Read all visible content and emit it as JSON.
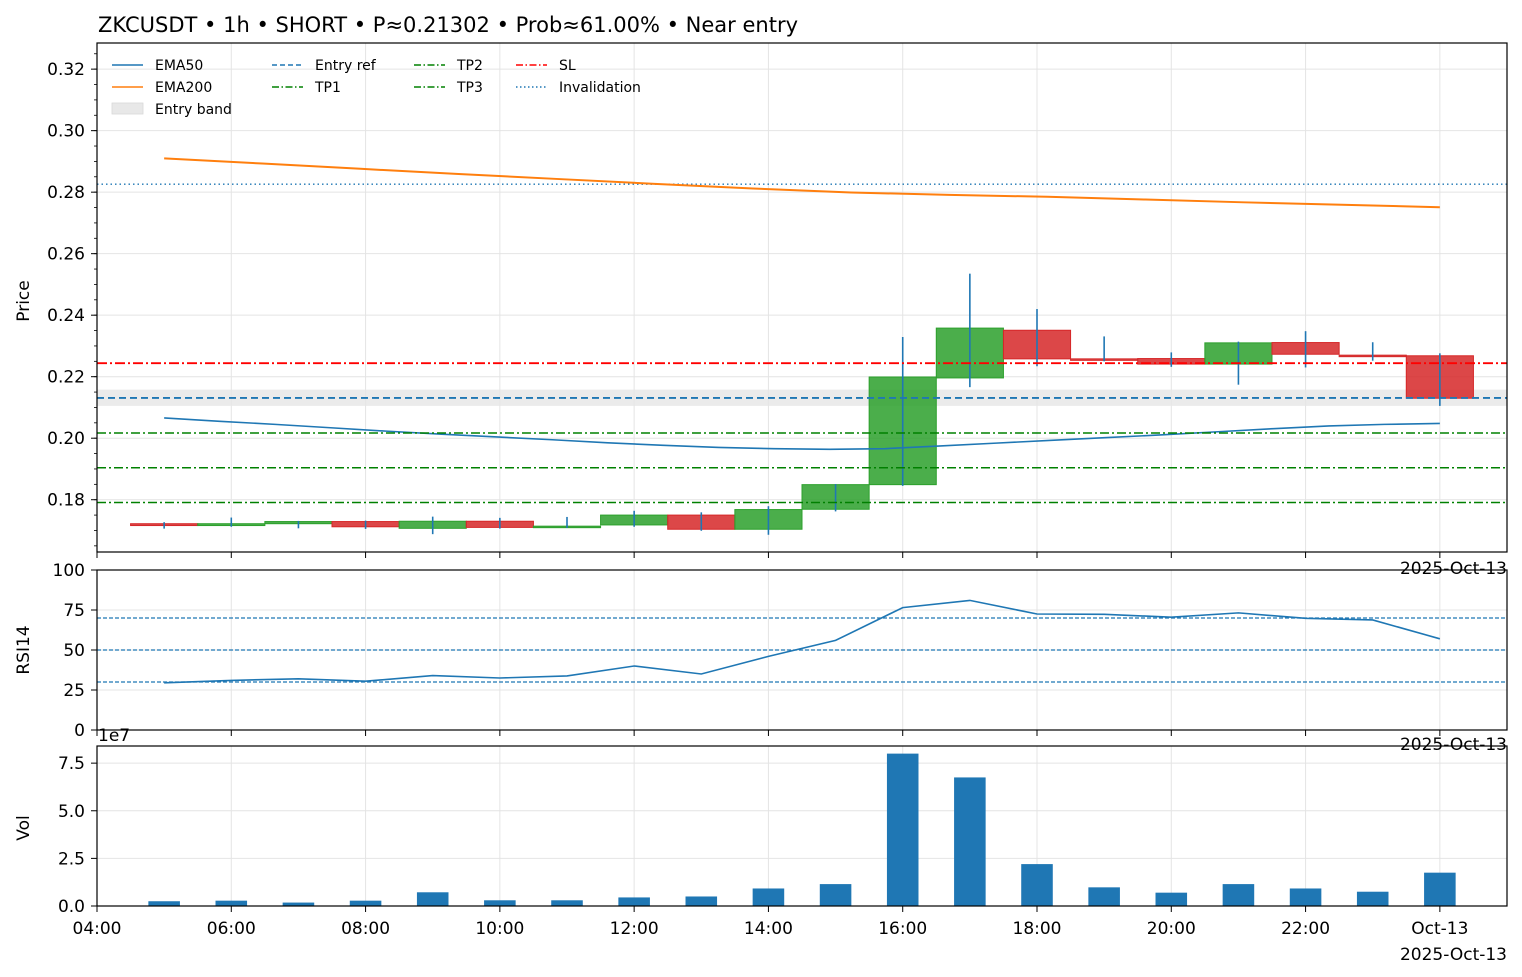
{
  "chart_data": [
    {
      "type": "candlestick",
      "title": "ZKCUSDT • 1h • SHORT • P≈0.21302 • Prob≈61.00% • Near entry",
      "ylabel": "Price",
      "ylim": [
        0.163,
        0.3285
      ],
      "xlim": [
        "2025-10-12 04:00",
        "2025-10-13 01:00"
      ],
      "yticks": [
        "0.18",
        "0.20",
        "0.22",
        "0.24",
        "0.26",
        "0.28",
        "0.30",
        "0.32"
      ],
      "date_label": "2025-Oct-13",
      "grid": true,
      "legend_position": "top-left",
      "legend": [
        {
          "label": "EMA50",
          "color": "#1f77b4",
          "style": "solid"
        },
        {
          "label": "EMA200",
          "color": "#ff7f0e",
          "style": "solid"
        },
        {
          "label": "Entry band",
          "color": "#e8e8e8",
          "style": "patch"
        },
        {
          "label": "Entry ref",
          "color": "#1f77b4",
          "style": "dashed"
        },
        {
          "label": "TP1",
          "color": "#008000",
          "style": "dashdot"
        },
        {
          "label": "TP2",
          "color": "#008000",
          "style": "dashdot"
        },
        {
          "label": "TP3",
          "color": "#008000",
          "style": "dashdot"
        },
        {
          "label": "SL",
          "color": "#ff0000",
          "style": "dashdot"
        },
        {
          "label": "Invalidation",
          "color": "#1f77b4",
          "style": "dotted"
        }
      ],
      "times": [
        "05:00",
        "06:00",
        "07:00",
        "08:00",
        "09:00",
        "10:00",
        "11:00",
        "12:00",
        "13:00",
        "14:00",
        "15:00",
        "16:00",
        "17:00",
        "18:00",
        "19:00",
        "20:00",
        "21:00",
        "22:00",
        "23:00",
        "Oct-13 00:00"
      ],
      "candles": [
        {
          "open": 0.1722,
          "close": 0.1716,
          "high": 0.1727,
          "low": 0.1706
        },
        {
          "open": 0.1716,
          "close": 0.1722,
          "high": 0.1742,
          "low": 0.1712
        },
        {
          "open": 0.1722,
          "close": 0.1729,
          "high": 0.1731,
          "low": 0.1707
        },
        {
          "open": 0.1729,
          "close": 0.1712,
          "high": 0.1732,
          "low": 0.1705
        },
        {
          "open": 0.1707,
          "close": 0.173,
          "high": 0.1745,
          "low": 0.1688
        },
        {
          "open": 0.173,
          "close": 0.171,
          "high": 0.1741,
          "low": 0.1706
        },
        {
          "open": 0.171,
          "close": 0.1714,
          "high": 0.1744,
          "low": 0.1708
        },
        {
          "open": 0.1718,
          "close": 0.175,
          "high": 0.1764,
          "low": 0.1712
        },
        {
          "open": 0.175,
          "close": 0.1704,
          "high": 0.1759,
          "low": 0.1699
        },
        {
          "open": 0.1704,
          "close": 0.1768,
          "high": 0.1779,
          "low": 0.1686
        },
        {
          "open": 0.1769,
          "close": 0.1849,
          "high": 0.1851,
          "low": 0.1762
        },
        {
          "open": 0.1849,
          "close": 0.2199,
          "high": 0.2329,
          "low": 0.1845
        },
        {
          "open": 0.2196,
          "close": 0.2358,
          "high": 0.2535,
          "low": 0.2166
        },
        {
          "open": 0.2351,
          "close": 0.2258,
          "high": 0.242,
          "low": 0.2234
        },
        {
          "open": 0.2258,
          "close": 0.2256,
          "high": 0.2331,
          "low": 0.225
        },
        {
          "open": 0.2259,
          "close": 0.2241,
          "high": 0.2279,
          "low": 0.2232
        },
        {
          "open": 0.2241,
          "close": 0.231,
          "high": 0.2314,
          "low": 0.2174
        },
        {
          "open": 0.2311,
          "close": 0.2273,
          "high": 0.2348,
          "low": 0.223
        },
        {
          "open": 0.227,
          "close": 0.2268,
          "high": 0.2312,
          "low": 0.2252
        },
        {
          "open": 0.2268,
          "close": 0.213,
          "high": 0.2276,
          "low": 0.2105
        }
      ],
      "ema50": [
        0.2066,
        0.2055,
        0.2045,
        0.2034,
        0.2023,
        0.2013,
        0.2004,
        0.1995,
        0.1985,
        0.1977,
        0.197,
        0.1966,
        0.1964,
        0.1966,
        0.1975,
        0.1984,
        0.1993,
        0.2002,
        0.2011,
        0.2021,
        0.2031,
        0.204,
        0.2045,
        0.2048
      ],
      "ema200": [
        0.291,
        0.2893,
        0.2876,
        0.2859,
        0.2843,
        0.2827,
        0.2812,
        0.2799,
        0.2791,
        0.2785,
        0.2776,
        0.2767,
        0.2759,
        0.2751
      ],
      "levels": {
        "entry_band": [
          0.2105,
          0.2158
        ],
        "entry_ref": 0.2131,
        "tp1": 0.2017,
        "tp2": 0.1904,
        "tp3": 0.1791,
        "sl": 0.2244,
        "invalidation": 0.2826
      }
    },
    {
      "type": "line",
      "ylabel": "RSI14",
      "ylim": [
        0,
        100
      ],
      "yticks": [
        "0",
        "25",
        "50",
        "75",
        "100"
      ],
      "reference_lines": [
        30,
        50,
        70
      ],
      "date_label": "2025-Oct-13",
      "color": "#1f77b4",
      "values": [
        29.5,
        31.0,
        32.0,
        30.5,
        34.0,
        32.5,
        33.8,
        40.0,
        35.0,
        46.0,
        56.0,
        76.5,
        81.0,
        72.5,
        72.3,
        70.5,
        73.2,
        69.8,
        68.8,
        57.0
      ]
    },
    {
      "type": "bar",
      "ylabel": "Vol",
      "multiplier_label": "1e7",
      "ylim": [
        0,
        8.4
      ],
      "yticks": [
        "0.0",
        "2.5",
        "5.0",
        "7.5"
      ],
      "color": "#1f77b4",
      "values": [
        0.25,
        0.28,
        0.18,
        0.28,
        0.72,
        0.3,
        0.3,
        0.45,
        0.5,
        0.92,
        1.15,
        8.0,
        6.75,
        2.2,
        0.98,
        0.7,
        1.15,
        0.92,
        0.75,
        1.75
      ],
      "xticks": [
        "04:00",
        "06:00",
        "08:00",
        "10:00",
        "12:00",
        "14:00",
        "16:00",
        "18:00",
        "20:00",
        "22:00",
        "Oct-13"
      ],
      "date_label": "2025-Oct-13"
    }
  ]
}
